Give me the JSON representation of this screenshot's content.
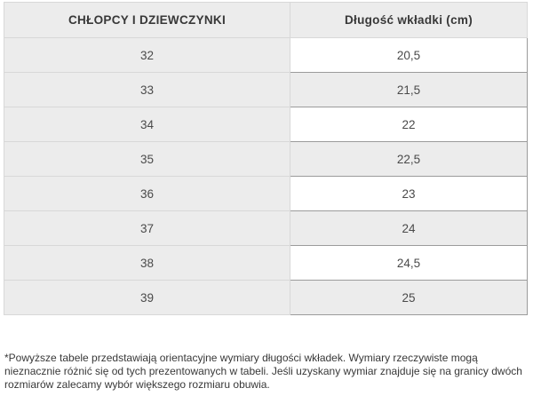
{
  "table": {
    "headers": {
      "size_label": "CHŁOPCY I DZIEWCZYNKI",
      "length_label": "Długość wkładki (cm)"
    },
    "rows": [
      {
        "size": "32",
        "length": "20,5"
      },
      {
        "size": "33",
        "length": "21,5"
      },
      {
        "size": "34",
        "length": "22"
      },
      {
        "size": "35",
        "length": "22,5"
      },
      {
        "size": "36",
        "length": "23"
      },
      {
        "size": "37",
        "length": "24"
      },
      {
        "size": "38",
        "length": "24,5"
      },
      {
        "size": "39",
        "length": "25"
      }
    ]
  },
  "footnote": {
    "lines": [
      "*Powyższe tabele przedstawiają orientacyjne wymiary długości wkładek. Wymiary rzeczywiste mogą",
      "nieznacznie różnić się od tych prezentowanych w tabeli. Jeśli uzyskany wymiar znajduje się na granicy dwóch",
      "rozmiarów zalecamy wybór większego rozmiaru obuwia."
    ]
  },
  "colors": {
    "row_gray": "#ececec",
    "border_light": "#d8d8d8",
    "border_dark": "#9b9b9b",
    "text_dark": "#383838",
    "text_cell": "#4a4a4a"
  }
}
